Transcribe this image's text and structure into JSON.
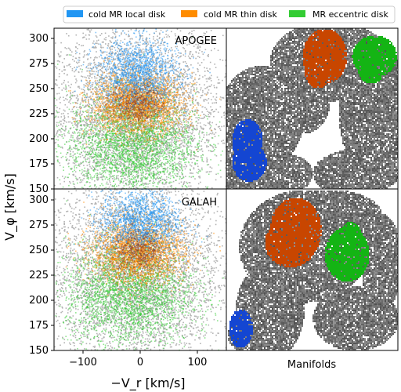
{
  "legend": {
    "placement": "top",
    "items": [
      {
        "label": "cold MR local disk",
        "color": "#2196f3"
      },
      {
        "label": "cold MR thin disk",
        "color": "#ff8c00"
      },
      {
        "label": "MR eccentric disk",
        "color": "#33cc33"
      }
    ]
  },
  "colors": {
    "background_stars": "#b3b3b3",
    "manifold_background": "#6e6e6e",
    "local_disk_manifold": "#1446d2",
    "thin_disk_manifold": "#c84600",
    "eccentric_manifold": "#14b414"
  },
  "chart_data": [
    {
      "type": "scatter",
      "title": "APOGEE",
      "xlabel": "−V_r [km/s]",
      "ylabel": "V_φ [km/s]",
      "xlim": [
        -150,
        150
      ],
      "ylim": [
        150,
        310
      ],
      "yticks": [
        150,
        175,
        200,
        225,
        250,
        275,
        300
      ],
      "xticks": [
        -100,
        0,
        100
      ],
      "series": [
        {
          "name": "cold MR local disk",
          "center": [
            -5,
            265
          ],
          "spread": [
            35,
            18
          ]
        },
        {
          "name": "cold MR thin disk",
          "center": [
            -5,
            235
          ],
          "spread": [
            40,
            15
          ]
        },
        {
          "name": "MR eccentric disk",
          "center": [
            -15,
            195
          ],
          "spread": [
            55,
            25
          ]
        }
      ]
    },
    {
      "type": "scatter",
      "title": "GALAH",
      "xlabel": "−V_r [km/s]",
      "ylabel": "V_φ [km/s]",
      "xlim": [
        -150,
        150
      ],
      "ylim": [
        150,
        305
      ],
      "yticks": [
        150,
        175,
        200,
        225,
        250,
        275,
        300
      ],
      "xticks": [
        -100,
        0,
        100
      ],
      "series": [
        {
          "name": "cold MR local disk",
          "center": [
            0,
            275
          ],
          "spread": [
            35,
            15
          ]
        },
        {
          "name": "cold MR thin disk",
          "center": [
            -5,
            245
          ],
          "spread": [
            40,
            15
          ]
        },
        {
          "name": "MR eccentric disk",
          "center": [
            -20,
            205
          ],
          "spread": [
            55,
            25
          ]
        }
      ]
    }
  ],
  "axes": {
    "y_ticks": [
      "150",
      "175",
      "200",
      "225",
      "250",
      "275",
      "300"
    ],
    "x_ticks": [
      "−100",
      "0",
      "100"
    ],
    "y_label": "V_φ [km/s]",
    "x_label": "−V_r [km/s]",
    "manifold_label": "Manifolds"
  },
  "panels": {
    "top_title": "APOGEE",
    "bottom_title": "GALAH"
  }
}
